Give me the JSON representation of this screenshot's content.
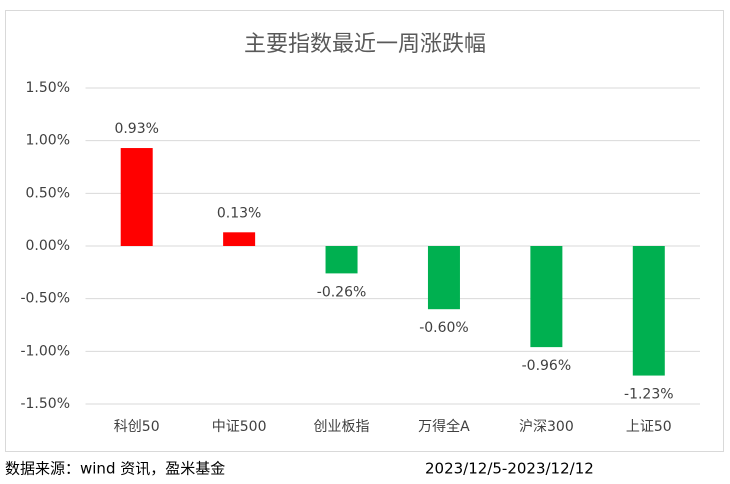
{
  "chart_data": {
    "type": "bar",
    "title": "主要指数最近一周涨跌幅",
    "categories": [
      "科创50",
      "中证500",
      "创业板指",
      "万得全A",
      "沪深300",
      "上证50"
    ],
    "values": [
      0.93,
      0.13,
      -0.26,
      -0.6,
      -0.96,
      -1.23
    ],
    "value_labels": [
      "0.93%",
      "0.13%",
      "-0.26%",
      "-0.60%",
      "-0.96%",
      "-1.23%"
    ],
    "colors": [
      "#ff0000",
      "#ff0000",
      "#00b050",
      "#00b050",
      "#00b050",
      "#00b050"
    ],
    "ylim": [
      -1.5,
      1.5
    ],
    "yticks": [
      {
        "value": -1.5,
        "label": "-1.50%"
      },
      {
        "value": -1,
        "label": "-1.00%"
      },
      {
        "value": -0.5,
        "label": "-0.50%"
      },
      {
        "value": 0,
        "label": "0.00%"
      },
      {
        "value": 0.5,
        "label": "0.50%"
      },
      {
        "value": 1,
        "label": "1.00%"
      },
      {
        "value": 1.5,
        "label": "1.50%"
      }
    ],
    "grid": true
  },
  "footer": {
    "source": "数据来源：wind 资讯，盈米基金",
    "period": "2023/12/5-2023/12/12"
  }
}
